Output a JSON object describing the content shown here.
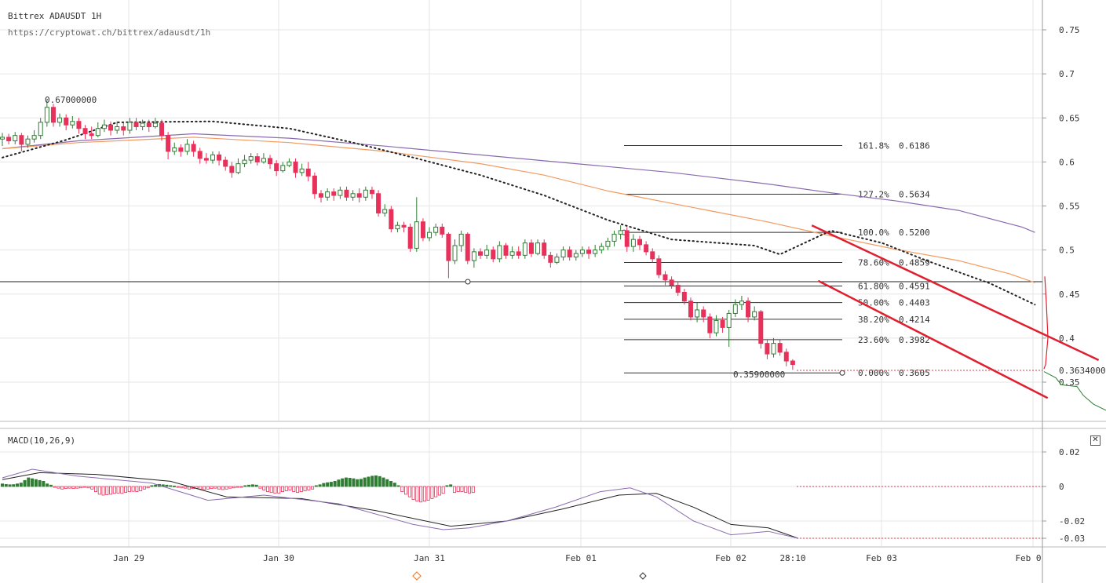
{
  "header": {
    "title": "Bittrex ADAUSDT 1H",
    "subtitle": "https://cryptowat.ch/bittrex/adausdt/1h"
  },
  "macd": {
    "label": "MACD(10,26,9)",
    "close_icon": "close-icon",
    "y_ticks": [
      "0.02",
      "0",
      "-0.02",
      "-0.03"
    ]
  },
  "colors": {
    "bull": "#2e7d32",
    "bear": "#e8315a",
    "channel": "#e02030",
    "sma_orange": "#f39a5f",
    "sma_purple": "#8a6bb0",
    "grid": "#e6e6e6"
  },
  "chart_data": {
    "type": "candlestick",
    "title": "Bittrex ADAUSDT 1H",
    "ylim": [
      0.31,
      0.77
    ],
    "y_ticks": [
      "0.75",
      "0.7",
      "0.65",
      "0.6",
      "0.55",
      "0.5",
      "0.45",
      "0.4",
      "0.35"
    ],
    "x_ticks": [
      "Jan 29",
      "Jan 30",
      "Jan 31",
      "Feb 01",
      "Feb 02",
      "28:10",
      "Feb 03",
      "Feb 0"
    ],
    "high_label": "0.67000000",
    "low_label": "0.35900000",
    "current_price": "0.3634000",
    "horizontal_level": 0.464,
    "fibonacci": [
      {
        "pct": "161.8%",
        "value": "0.6186"
      },
      {
        "pct": "127.2%",
        "value": "0.5634"
      },
      {
        "pct": "100.0%",
        "value": "0.5200"
      },
      {
        "pct": "78.60%",
        "value": "0.4859"
      },
      {
        "pct": "61.80%",
        "value": "0.4591"
      },
      {
        "pct": "50.00%",
        "value": "0.4403"
      },
      {
        "pct": "38.20%",
        "value": "0.4214"
      },
      {
        "pct": "23.60%",
        "value": "0.3982"
      },
      {
        "pct": "0.000%",
        "value": "0.3605"
      }
    ],
    "candles": [
      [
        0.626,
        0.628,
        0.633,
        0.618
      ],
      [
        0.628,
        0.624,
        0.632,
        0.62
      ],
      [
        0.624,
        0.63,
        0.634,
        0.62
      ],
      [
        0.63,
        0.62,
        0.633,
        0.612
      ],
      [
        0.62,
        0.626,
        0.63,
        0.616
      ],
      [
        0.626,
        0.63,
        0.636,
        0.622
      ],
      [
        0.63,
        0.645,
        0.65,
        0.626
      ],
      [
        0.645,
        0.662,
        0.67,
        0.64
      ],
      [
        0.662,
        0.645,
        0.666,
        0.64
      ],
      [
        0.645,
        0.65,
        0.655,
        0.64
      ],
      [
        0.65,
        0.642,
        0.654,
        0.636
      ],
      [
        0.642,
        0.646,
        0.652,
        0.638
      ],
      [
        0.646,
        0.638,
        0.65,
        0.632
      ],
      [
        0.638,
        0.632,
        0.642,
        0.626
      ],
      [
        0.632,
        0.63,
        0.64,
        0.626
      ],
      [
        0.63,
        0.638,
        0.645,
        0.628
      ],
      [
        0.638,
        0.642,
        0.648,
        0.634
      ],
      [
        0.642,
        0.636,
        0.646,
        0.63
      ],
      [
        0.636,
        0.64,
        0.646,
        0.632
      ],
      [
        0.64,
        0.636,
        0.644,
        0.63
      ],
      [
        0.636,
        0.645,
        0.65,
        0.632
      ],
      [
        0.645,
        0.64,
        0.65,
        0.636
      ],
      [
        0.64,
        0.644,
        0.648,
        0.636
      ],
      [
        0.644,
        0.64,
        0.648,
        0.634
      ],
      [
        0.64,
        0.644,
        0.65,
        0.638
      ],
      [
        0.644,
        0.63,
        0.648,
        0.624
      ],
      [
        0.63,
        0.612,
        0.634,
        0.603
      ],
      [
        0.612,
        0.616,
        0.622,
        0.608
      ],
      [
        0.616,
        0.612,
        0.62,
        0.606
      ],
      [
        0.612,
        0.62,
        0.626,
        0.608
      ],
      [
        0.62,
        0.612,
        0.624,
        0.606
      ],
      [
        0.612,
        0.604,
        0.616,
        0.598
      ],
      [
        0.604,
        0.602,
        0.61,
        0.598
      ],
      [
        0.602,
        0.608,
        0.612,
        0.598
      ],
      [
        0.608,
        0.602,
        0.612,
        0.596
      ],
      [
        0.602,
        0.595,
        0.606,
        0.59
      ],
      [
        0.595,
        0.588,
        0.6,
        0.582
      ],
      [
        0.588,
        0.598,
        0.604,
        0.586
      ],
      [
        0.598,
        0.602,
        0.608,
        0.594
      ],
      [
        0.602,
        0.606,
        0.61,
        0.598
      ],
      [
        0.606,
        0.6,
        0.61,
        0.596
      ],
      [
        0.6,
        0.604,
        0.61,
        0.598
      ],
      [
        0.604,
        0.598,
        0.608,
        0.592
      ],
      [
        0.598,
        0.59,
        0.602,
        0.584
      ],
      [
        0.59,
        0.596,
        0.6,
        0.588
      ],
      [
        0.596,
        0.6,
        0.604,
        0.594
      ],
      [
        0.6,
        0.588,
        0.604,
        0.582
      ],
      [
        0.588,
        0.592,
        0.598,
        0.584
      ],
      [
        0.592,
        0.584,
        0.6,
        0.578
      ],
      [
        0.584,
        0.564,
        0.588,
        0.558
      ],
      [
        0.564,
        0.56,
        0.568,
        0.554
      ],
      [
        0.56,
        0.566,
        0.57,
        0.556
      ],
      [
        0.566,
        0.562,
        0.57,
        0.556
      ],
      [
        0.562,
        0.568,
        0.572,
        0.558
      ],
      [
        0.568,
        0.56,
        0.572,
        0.556
      ],
      [
        0.56,
        0.564,
        0.568,
        0.556
      ],
      [
        0.564,
        0.56,
        0.57,
        0.554
      ],
      [
        0.56,
        0.568,
        0.572,
        0.556
      ],
      [
        0.568,
        0.564,
        0.572,
        0.558
      ],
      [
        0.564,
        0.542,
        0.568,
        0.538
      ],
      [
        0.542,
        0.546,
        0.552,
        0.538
      ],
      [
        0.546,
        0.524,
        0.55,
        0.52
      ],
      [
        0.524,
        0.528,
        0.532,
        0.52
      ],
      [
        0.528,
        0.526,
        0.532,
        0.52
      ],
      [
        0.526,
        0.502,
        0.53,
        0.498
      ],
      [
        0.502,
        0.532,
        0.56,
        0.498
      ],
      [
        0.532,
        0.514,
        0.536,
        0.51
      ],
      [
        0.514,
        0.52,
        0.526,
        0.51
      ],
      [
        0.52,
        0.526,
        0.53,
        0.516
      ],
      [
        0.526,
        0.518,
        0.53,
        0.514
      ],
      [
        0.518,
        0.488,
        0.52,
        0.468
      ],
      [
        0.488,
        0.505,
        0.512,
        0.484
      ],
      [
        0.505,
        0.518,
        0.522,
        0.498
      ],
      [
        0.518,
        0.488,
        0.52,
        0.484
      ],
      [
        0.488,
        0.498,
        0.502,
        0.48
      ],
      [
        0.498,
        0.494,
        0.502,
        0.49
      ],
      [
        0.494,
        0.5,
        0.506,
        0.49
      ],
      [
        0.5,
        0.49,
        0.504,
        0.486
      ],
      [
        0.49,
        0.505,
        0.51,
        0.486
      ],
      [
        0.505,
        0.494,
        0.508,
        0.49
      ],
      [
        0.494,
        0.498,
        0.504,
        0.49
      ],
      [
        0.498,
        0.494,
        0.504,
        0.49
      ],
      [
        0.494,
        0.508,
        0.512,
        0.49
      ],
      [
        0.508,
        0.496,
        0.512,
        0.492
      ],
      [
        0.496,
        0.508,
        0.512,
        0.494
      ],
      [
        0.508,
        0.494,
        0.512,
        0.49
      ],
      [
        0.494,
        0.486,
        0.498,
        0.48
      ],
      [
        0.486,
        0.492,
        0.496,
        0.484
      ],
      [
        0.492,
        0.5,
        0.504,
        0.488
      ],
      [
        0.5,
        0.492,
        0.504,
        0.488
      ],
      [
        0.492,
        0.496,
        0.5,
        0.488
      ],
      [
        0.496,
        0.5,
        0.504,
        0.492
      ],
      [
        0.5,
        0.496,
        0.504,
        0.49
      ],
      [
        0.496,
        0.5,
        0.506,
        0.492
      ],
      [
        0.5,
        0.504,
        0.508,
        0.496
      ],
      [
        0.504,
        0.51,
        0.514,
        0.5
      ],
      [
        0.51,
        0.518,
        0.522,
        0.504
      ],
      [
        0.518,
        0.522,
        0.528,
        0.512
      ],
      [
        0.522,
        0.504,
        0.526,
        0.498
      ],
      [
        0.504,
        0.512,
        0.518,
        0.498
      ],
      [
        0.512,
        0.506,
        0.516,
        0.5
      ],
      [
        0.506,
        0.498,
        0.51,
        0.494
      ],
      [
        0.498,
        0.49,
        0.502,
        0.486
      ],
      [
        0.49,
        0.472,
        0.494,
        0.468
      ],
      [
        0.472,
        0.466,
        0.476,
        0.46
      ],
      [
        0.466,
        0.46,
        0.47,
        0.456
      ],
      [
        0.46,
        0.452,
        0.464,
        0.448
      ],
      [
        0.452,
        0.442,
        0.456,
        0.438
      ],
      [
        0.442,
        0.424,
        0.446,
        0.42
      ],
      [
        0.424,
        0.432,
        0.44,
        0.418
      ],
      [
        0.432,
        0.424,
        0.436,
        0.418
      ],
      [
        0.424,
        0.406,
        0.428,
        0.4
      ],
      [
        0.406,
        0.42,
        0.426,
        0.402
      ],
      [
        0.42,
        0.412,
        0.424,
        0.406
      ],
      [
        0.412,
        0.428,
        0.432,
        0.39
      ],
      [
        0.428,
        0.438,
        0.444,
        0.424
      ],
      [
        0.438,
        0.442,
        0.448,
        0.432
      ],
      [
        0.442,
        0.424,
        0.446,
        0.418
      ],
      [
        0.424,
        0.43,
        0.436,
        0.42
      ],
      [
        0.43,
        0.394,
        0.432,
        0.388
      ],
      [
        0.394,
        0.382,
        0.398,
        0.376
      ],
      [
        0.382,
        0.394,
        0.4,
        0.378
      ],
      [
        0.394,
        0.384,
        0.398,
        0.38
      ],
      [
        0.384,
        0.374,
        0.388,
        0.368
      ],
      [
        0.374,
        0.37,
        0.376,
        0.364
      ]
    ],
    "sma_orange": [
      [
        0,
        0.615
      ],
      [
        12,
        0.622
      ],
      [
        30,
        0.628
      ],
      [
        45,
        0.622
      ],
      [
        60,
        0.612
      ],
      [
        75,
        0.598
      ],
      [
        85,
        0.585
      ],
      [
        95,
        0.567
      ],
      [
        110,
        0.546
      ],
      [
        120,
        0.532
      ],
      [
        130,
        0.516
      ],
      [
        140,
        0.501
      ],
      [
        150,
        0.488
      ],
      [
        158,
        0.473
      ],
      [
        162,
        0.463
      ]
    ],
    "sma_purple": [
      [
        0,
        0.615
      ],
      [
        12,
        0.624
      ],
      [
        30,
        0.632
      ],
      [
        45,
        0.627
      ],
      [
        60,
        0.618
      ],
      [
        75,
        0.608
      ],
      [
        90,
        0.598
      ],
      [
        105,
        0.588
      ],
      [
        120,
        0.575
      ],
      [
        130,
        0.565
      ],
      [
        140,
        0.556
      ],
      [
        150,
        0.545
      ],
      [
        160,
        0.526
      ],
      [
        162,
        0.52
      ]
    ],
    "sma_dotted": [
      [
        0,
        0.605
      ],
      [
        10,
        0.625
      ],
      [
        18,
        0.645
      ],
      [
        33,
        0.646
      ],
      [
        45,
        0.638
      ],
      [
        55,
        0.622
      ],
      [
        65,
        0.604
      ],
      [
        75,
        0.585
      ],
      [
        85,
        0.562
      ],
      [
        95,
        0.534
      ],
      [
        105,
        0.512
      ],
      [
        118,
        0.505
      ],
      [
        122,
        0.495
      ],
      [
        130,
        0.522
      ],
      [
        138,
        0.508
      ],
      [
        145,
        0.488
      ],
      [
        155,
        0.462
      ],
      [
        162,
        0.438
      ]
    ],
    "channel_upper": [
      [
        127,
        0.528
      ],
      [
        172,
        0.375
      ]
    ],
    "channel_lower": [
      [
        128,
        0.465
      ],
      [
        164,
        0.332
      ]
    ],
    "macd_histogram": [
      0.0015,
      0.0012,
      0.001,
      0.0011,
      0.0015,
      0.002,
      0.0035,
      0.005,
      0.0045,
      0.004,
      0.0035,
      0.003,
      0.0015,
      0.0008,
      -0.0005,
      -0.001,
      -0.0015,
      -0.0012,
      -0.001,
      -0.0012,
      -0.001,
      -0.0008,
      -0.0005,
      -0.0008,
      -0.0015,
      -0.003,
      -0.0045,
      -0.005,
      -0.0048,
      -0.0045,
      -0.004,
      -0.0038,
      -0.004,
      -0.0035,
      -0.003,
      -0.0028,
      -0.003,
      -0.0025,
      -0.0015,
      -0.0008,
      0.0005,
      0.0008,
      0.0012,
      0.001,
      0.0008,
      0.0005,
      0.0003,
      -0.0005,
      -0.0008,
      -0.001,
      -0.0015,
      -0.0012,
      -0.001,
      -0.0015,
      -0.0018,
      -0.0015,
      -0.0012,
      -0.001,
      -0.0015,
      -0.0018,
      -0.0015,
      -0.001,
      -0.0008,
      -0.0005,
      -0.0003,
      0.0005,
      0.0008,
      0.001,
      0.0008,
      -0.001,
      -0.002,
      -0.003,
      -0.0035,
      -0.004,
      -0.0038,
      -0.003,
      -0.0025,
      -0.002,
      -0.003,
      -0.0035,
      -0.003,
      -0.0025,
      -0.002,
      -0.0015,
      0.0005,
      0.001,
      0.0018,
      0.0022,
      0.0025,
      0.003,
      0.0038,
      0.0045,
      0.005,
      0.0048,
      0.0045,
      0.004,
      0.0042,
      0.005,
      0.0055,
      0.006,
      0.0062,
      0.0058,
      0.005,
      0.004,
      0.003,
      0.002,
      0.0005,
      -0.003,
      -0.0045,
      -0.006,
      -0.0075,
      -0.0085,
      -0.009,
      -0.0085,
      -0.008,
      -0.007,
      -0.006,
      -0.005,
      -0.004,
      0.0005,
      0.001,
      -0.0035,
      -0.003,
      -0.003,
      -0.0035,
      -0.0038,
      -0.0035
    ],
    "macd_line": [
      [
        0,
        0.005
      ],
      [
        8,
        0.01
      ],
      [
        20,
        0.006
      ],
      [
        40,
        0.002
      ],
      [
        55,
        -0.008
      ],
      [
        70,
        -0.005
      ],
      [
        90,
        -0.01
      ],
      [
        110,
        -0.022
      ],
      [
        118,
        -0.025
      ],
      [
        125,
        -0.024
      ],
      [
        135,
        -0.02
      ],
      [
        148,
        -0.012
      ],
      [
        160,
        -0.003
      ],
      [
        168,
        -0.0008
      ],
      [
        175,
        -0.006
      ],
      [
        185,
        -0.02
      ],
      [
        195,
        -0.028
      ],
      [
        205,
        -0.026
      ],
      [
        213,
        -0.03
      ]
    ],
    "signal_line": [
      [
        0,
        0.004
      ],
      [
        10,
        0.008
      ],
      [
        25,
        0.007
      ],
      [
        45,
        0.003
      ],
      [
        60,
        -0.006
      ],
      [
        80,
        -0.007
      ],
      [
        100,
        -0.014
      ],
      [
        120,
        -0.023
      ],
      [
        135,
        -0.02
      ],
      [
        150,
        -0.013
      ],
      [
        165,
        -0.005
      ],
      [
        175,
        -0.004
      ],
      [
        185,
        -0.012
      ],
      [
        195,
        -0.022
      ],
      [
        205,
        -0.024
      ],
      [
        213,
        -0.03
      ]
    ],
    "depth_curve": [
      [
        0.47,
        0.0
      ],
      [
        0.45,
        1.0
      ],
      [
        0.43,
        2.0
      ],
      [
        0.41,
        4.0
      ],
      [
        0.39,
        6.0
      ],
      [
        0.37,
        9.0
      ],
      [
        0.36,
        12.0
      ],
      [
        0.36,
        0.0
      ],
      [
        0.35,
        1.5
      ],
      [
        0.345,
        3.0
      ],
      [
        0.34,
        5.0
      ],
      [
        0.335,
        8.0
      ],
      [
        0.33,
        11.0
      ],
      [
        0.325,
        15.0
      ],
      [
        0.32,
        20.0
      ]
    ],
    "x_ticks_positions": [
      "Jan 29",
      "Jan 30",
      "Jan 31",
      "Feb 01",
      "Feb 02",
      "28:10",
      "Feb 03",
      "Feb 0"
    ]
  }
}
